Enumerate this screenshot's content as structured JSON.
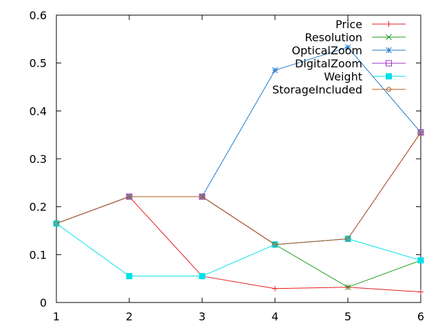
{
  "chart_data": {
    "type": "line",
    "title": "",
    "xlabel": "",
    "ylabel": "",
    "x": [
      1,
      2,
      3,
      4,
      5,
      6
    ],
    "xlim": [
      1,
      6
    ],
    "ylim": [
      0,
      0.6
    ],
    "xticks": [
      1,
      2,
      3,
      4,
      5,
      6
    ],
    "xtick_labels": [
      "1",
      "2",
      "3",
      "4",
      "5",
      "6"
    ],
    "yticks": [
      0,
      0.1,
      0.2,
      0.3,
      0.4,
      0.5,
      0.6
    ],
    "ytick_labels": [
      "0",
      "0.1",
      "0.2",
      "0.3",
      "0.4",
      "0.5",
      "0.6"
    ],
    "grid": false,
    "legend_position": "top-right",
    "series": [
      {
        "name": "Price",
        "marker": "plus",
        "color": "#e41a1c",
        "values": [
          0.165,
          0.221,
          0.055,
          0.029,
          0.032,
          0.022
        ]
      },
      {
        "name": "Resolution",
        "marker": "cross",
        "color": "#1a9e1a",
        "values": [
          0.165,
          0.221,
          0.221,
          0.121,
          0.032,
          0.088
        ]
      },
      {
        "name": "OpticalZoom",
        "marker": "star",
        "color": "#1f78c8",
        "values": [
          0.165,
          0.221,
          0.221,
          0.485,
          0.533,
          0.355
        ]
      },
      {
        "name": "DigitalZoom",
        "marker": "open-square",
        "color": "#9b30c8",
        "values": [
          0.165,
          0.221,
          0.221,
          0.121,
          0.133,
          0.355
        ]
      },
      {
        "name": "Weight",
        "marker": "filled-square",
        "color": "#00e0e8",
        "values": [
          0.165,
          0.055,
          0.055,
          0.121,
          0.133,
          0.088
        ]
      },
      {
        "name": "StorageIncluded",
        "marker": "open-circle",
        "color": "#b05a1a",
        "values": [
          0.165,
          0.221,
          0.221,
          0.121,
          0.133,
          0.355
        ]
      }
    ]
  }
}
